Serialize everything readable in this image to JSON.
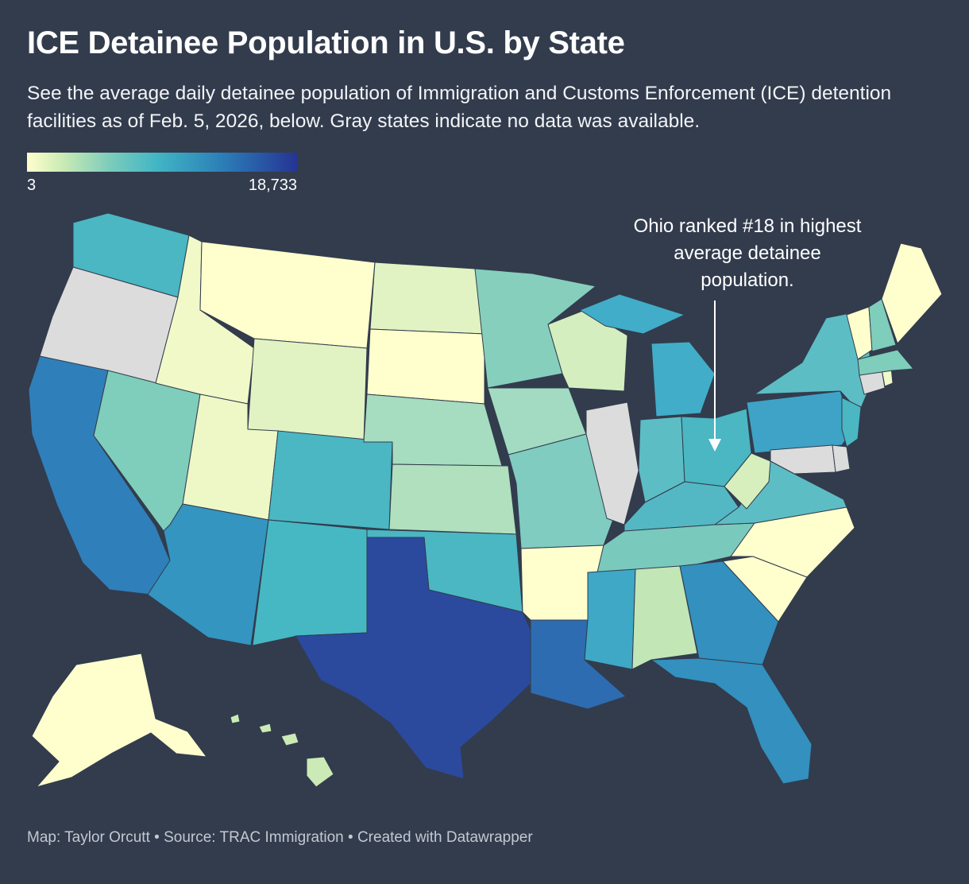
{
  "title": "ICE Detainee Population in U.S. by State",
  "subtitle": "See the average daily detainee population of Immigration and Customs Enforcement (ICE) detention facilities as of Feb. 5, 2026, below. Gray states indicate no data was available.",
  "legend": {
    "min_label": "3",
    "max_label": "18,733",
    "colors": [
      "#ffffcc",
      "#c7e9b4",
      "#7fcdbb",
      "#41b6c4",
      "#2c7fb8",
      "#253494"
    ],
    "no_data_color": "#dcdcdc"
  },
  "annotation": {
    "text": "Ohio ranked #18 in highest average detainee population.",
    "state": "Ohio"
  },
  "footer": "Map: Taylor Orcutt • Source: TRAC Immigration • Created with Datawrapper",
  "map_data": {
    "type": "choropleth",
    "region": "United States",
    "colors": {
      "Washington": "#4ab7c3",
      "Oregon": "#dcdcdc",
      "California": "#2f7fba",
      "Nevada": "#7fcdbb",
      "Idaho": "#f1f9c9",
      "Montana": "#ffffcd",
      "Wyoming": "#e2f3c3",
      "Utah": "#eef8c7",
      "Arizona": "#3495c0",
      "Colorado": "#4ab7c3",
      "New Mexico": "#46b8c4",
      "North Dakota": "#e2f3c3",
      "South Dakota": "#ffffcd",
      "Nebraska": "#a6dcc0",
      "Kansas": "#b0e0bd",
      "Oklahoma": "#4ab7c3",
      "Texas": "#2b4a9e",
      "Minnesota": "#86cfbc",
      "Iowa": "#a2dbc1",
      "Missouri": "#80ccc0",
      "Arkansas": "#ffffcd",
      "Louisiana": "#2d6cb0",
      "Wisconsin": "#d5eec0",
      "Illinois": "#dcdcdc",
      "Michigan": "#41adc8",
      "Indiana": "#5dbdc4",
      "Ohio": "#4ab7c3",
      "Kentucky": "#53b8c4",
      "Tennessee": "#7ac9bd",
      "Mississippi": "#3ea8c6",
      "Alabama": "#c2e6b6",
      "Georgia": "#3390bf",
      "Florida": "#3390bf",
      "South Carolina": "#ffffcd",
      "North Carolina": "#ffffcd",
      "Virginia": "#5dbdc4",
      "West Virginia": "#d6efbd",
      "Pennsylvania": "#3ea3c6",
      "New York": "#5dbdc4",
      "Maryland": "#dcdcdc",
      "Delaware": "#dcdcdc",
      "New Jersey": "#4ab7c3",
      "Connecticut": "#dcdcdc",
      "Rhode Island": "#f1f9c9",
      "Massachusetts": "#7fcdbb",
      "Vermont": "#ffffcd",
      "New Hampshire": "#7fcdbb",
      "Maine": "#ffffcd",
      "Alaska": "#ffffcd",
      "Hawaii": "#cbeab6"
    }
  }
}
